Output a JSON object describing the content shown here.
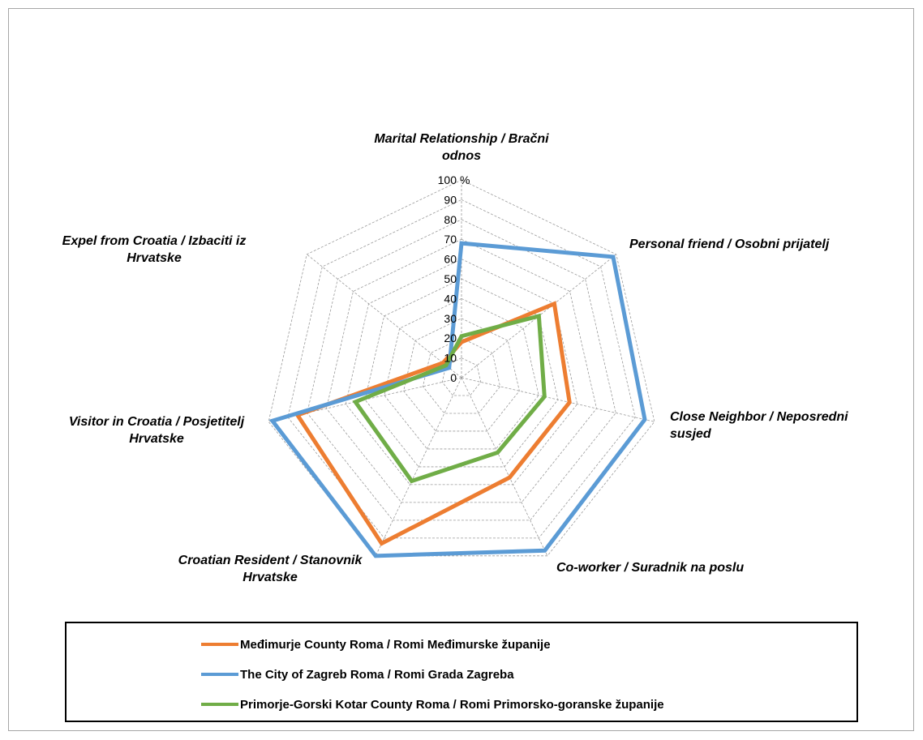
{
  "chart_data": {
    "type": "radar",
    "unit_label": "%",
    "r_range": [
      0,
      100
    ],
    "r_ticks": [
      0,
      10,
      20,
      30,
      40,
      50,
      60,
      70,
      80,
      90,
      100
    ],
    "axes": [
      [
        "Marital Relationship / Bračni",
        "odnos"
      ],
      [
        "Personal friend / Osobni prijatelj"
      ],
      [
        "Close Neighbor / Neposredni",
        "susjed"
      ],
      [
        "Co-worker / Suradnik na poslu"
      ],
      [
        "Croatian Resident / Stanovnik",
        "Hrvatske"
      ],
      [
        "Visitor in Croatia / Posjetitelj",
        "Hrvatske"
      ],
      [
        "Expel from Croatia / Izbaciti iz",
        "Hrvatske"
      ]
    ],
    "series": [
      {
        "name": "Međimurje County Roma / Romi Međimurske županije",
        "color": "#ED7D31",
        "values": [
          18,
          60,
          56,
          56,
          93,
          85,
          12
        ]
      },
      {
        "name": "The City of Zagreb Roma / Romi Grada Zagreba",
        "color": "#5B9BD5",
        "values": [
          68,
          98,
          95,
          97,
          100,
          98,
          8
        ]
      },
      {
        "name": "Primorje-Gorski Kotar County Roma / Romi Primorsko-goranske županije",
        "color": "#70AD47",
        "values": [
          21,
          50,
          43,
          42,
          58,
          55,
          10
        ]
      }
    ],
    "legend_position": "bottom",
    "grid": true
  }
}
